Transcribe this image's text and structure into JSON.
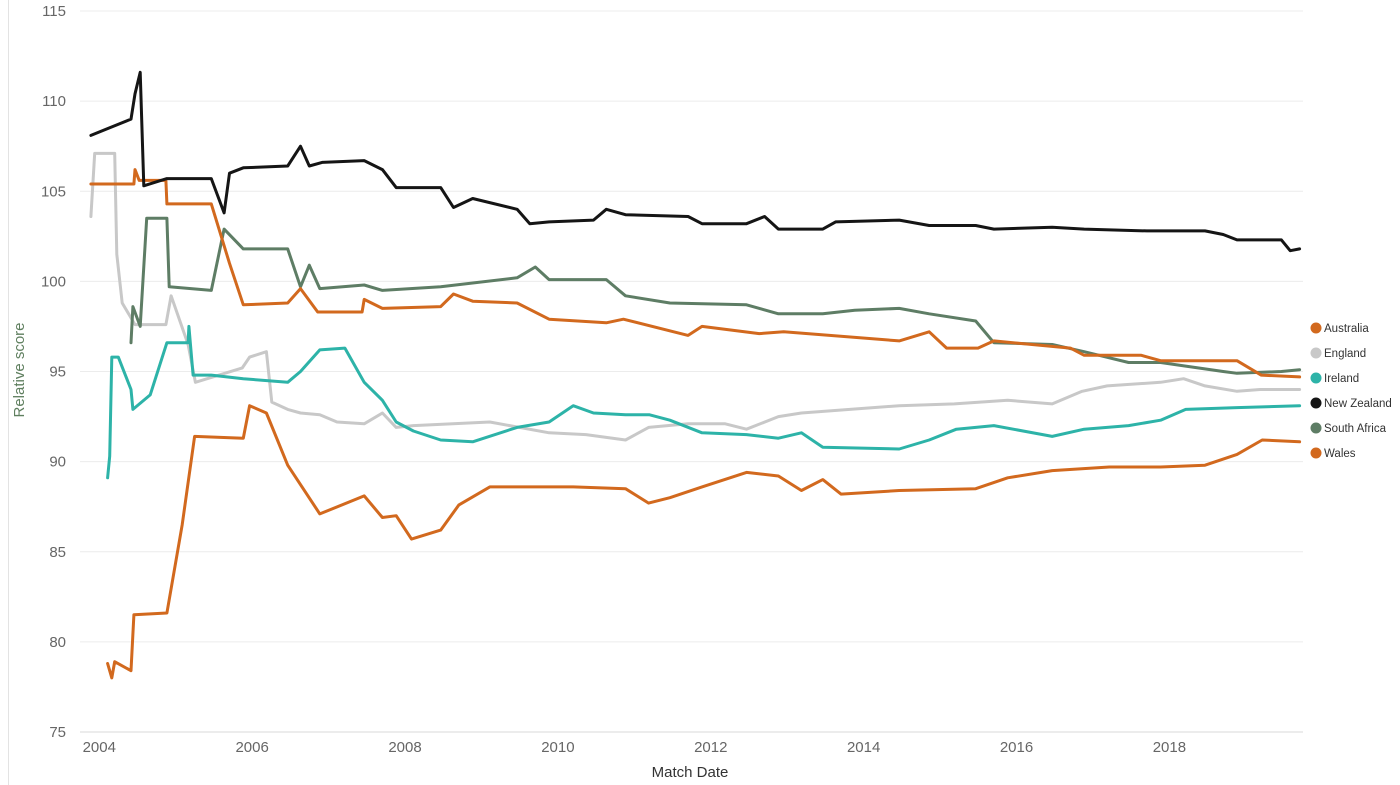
{
  "chart_data": {
    "type": "line",
    "xlabel": "Match Date",
    "ylabel": "Relative score",
    "xlim": [
      "2003-10-01",
      "2019-10-01"
    ],
    "ylim": [
      75,
      115
    ],
    "yticks": [
      75,
      80,
      85,
      90,
      95,
      100,
      105,
      110,
      115
    ],
    "xticks": [
      "2004",
      "2006",
      "2008",
      "2010",
      "2012",
      "2014",
      "2016",
      "2018"
    ],
    "grid": "horizontal",
    "legend_position": "right",
    "series": [
      {
        "name": "Australia",
        "color": "#D2691E",
        "points": [
          [
            "2003-11-22",
            105.4
          ],
          [
            "2004-06-15",
            105.4
          ],
          [
            "2004-06-20",
            106.2
          ],
          [
            "2004-07-10",
            105.6
          ],
          [
            "2004-11-15",
            105.6
          ],
          [
            "2004-11-20",
            104.3
          ],
          [
            "2005-06-20",
            104.3
          ],
          [
            "2005-09-15",
            101.0
          ],
          [
            "2005-11-20",
            98.7
          ],
          [
            "2006-06-20",
            98.8
          ],
          [
            "2006-08-20",
            99.6
          ],
          [
            "2006-11-10",
            98.3
          ],
          [
            "2007-06-10",
            98.3
          ],
          [
            "2007-06-20",
            99.0
          ],
          [
            "2007-09-15",
            98.5
          ],
          [
            "2008-06-20",
            98.6
          ],
          [
            "2008-08-20",
            99.3
          ],
          [
            "2008-11-20",
            98.9
          ],
          [
            "2009-06-20",
            98.8
          ],
          [
            "2009-11-20",
            97.9
          ],
          [
            "2010-08-20",
            97.7
          ],
          [
            "2010-11-10",
            97.9
          ],
          [
            "2011-09-15",
            97.0
          ],
          [
            "2011-11-20",
            97.5
          ],
          [
            "2012-08-20",
            97.1
          ],
          [
            "2012-12-15",
            97.2
          ],
          [
            "2014-06-20",
            96.7
          ],
          [
            "2014-11-10",
            97.2
          ],
          [
            "2015-02-01",
            96.3
          ],
          [
            "2015-07-01",
            96.3
          ],
          [
            "2015-09-15",
            96.7
          ],
          [
            "2016-09-15",
            96.3
          ],
          [
            "2016-11-20",
            95.9
          ],
          [
            "2017-08-20",
            95.9
          ],
          [
            "2017-11-20",
            95.6
          ],
          [
            "2018-11-20",
            95.6
          ],
          [
            "2019-03-15",
            94.8
          ],
          [
            "2019-09-15",
            94.7
          ]
        ]
      },
      {
        "name": "England",
        "color": "#C8C8C8",
        "points": [
          [
            "2003-11-22",
            103.6
          ],
          [
            "2003-12-10",
            107.1
          ],
          [
            "2004-03-15",
            107.1
          ],
          [
            "2004-03-25",
            101.5
          ],
          [
            "2004-04-20",
            98.8
          ],
          [
            "2004-06-20",
            97.6
          ],
          [
            "2004-11-15",
            97.6
          ],
          [
            "2004-12-10",
            99.2
          ],
          [
            "2005-03-01",
            96.5
          ],
          [
            "2005-04-05",
            94.4
          ],
          [
            "2005-11-15",
            95.2
          ],
          [
            "2005-12-20",
            95.8
          ],
          [
            "2006-03-10",
            96.1
          ],
          [
            "2006-04-05",
            93.3
          ],
          [
            "2006-06-20",
            92.9
          ],
          [
            "2006-08-20",
            92.7
          ],
          [
            "2006-11-20",
            92.6
          ],
          [
            "2007-02-10",
            92.2
          ],
          [
            "2007-06-20",
            92.1
          ],
          [
            "2007-09-15",
            92.7
          ],
          [
            "2007-11-20",
            91.9
          ],
          [
            "2008-02-10",
            92.0
          ],
          [
            "2009-02-10",
            92.2
          ],
          [
            "2009-11-20",
            91.6
          ],
          [
            "2010-05-15",
            91.5
          ],
          [
            "2010-11-20",
            91.2
          ],
          [
            "2011-03-10",
            91.9
          ],
          [
            "2011-09-15",
            92.1
          ],
          [
            "2012-03-10",
            92.1
          ],
          [
            "2012-06-20",
            91.8
          ],
          [
            "2012-11-20",
            92.5
          ],
          [
            "2013-03-10",
            92.7
          ],
          [
            "2014-06-20",
            93.1
          ],
          [
            "2015-03-10",
            93.2
          ],
          [
            "2015-11-20",
            93.4
          ],
          [
            "2016-06-20",
            93.2
          ],
          [
            "2016-11-10",
            93.9
          ],
          [
            "2017-03-10",
            94.2
          ],
          [
            "2017-11-20",
            94.4
          ],
          [
            "2018-03-10",
            94.6
          ],
          [
            "2018-06-20",
            94.2
          ],
          [
            "2018-11-20",
            93.9
          ],
          [
            "2019-03-10",
            94.0
          ],
          [
            "2019-09-15",
            94.0
          ]
        ]
      },
      {
        "name": "Ireland",
        "color": "#2DB3A8",
        "points": [
          [
            "2004-02-10",
            89.1
          ],
          [
            "2004-02-20",
            90.3
          ],
          [
            "2004-03-01",
            95.8
          ],
          [
            "2004-04-01",
            95.8
          ],
          [
            "2004-06-01",
            94.0
          ],
          [
            "2004-06-10",
            92.9
          ],
          [
            "2004-09-01",
            93.7
          ],
          [
            "2004-11-20",
            96.6
          ],
          [
            "2005-03-01",
            96.6
          ],
          [
            "2005-03-05",
            97.5
          ],
          [
            "2005-03-25",
            94.8
          ],
          [
            "2005-06-20",
            94.8
          ],
          [
            "2005-11-20",
            94.6
          ],
          [
            "2006-06-20",
            94.4
          ],
          [
            "2006-08-20",
            95.0
          ],
          [
            "2006-11-20",
            96.2
          ],
          [
            "2007-03-20",
            96.3
          ],
          [
            "2007-06-20",
            94.4
          ],
          [
            "2007-09-15",
            93.4
          ],
          [
            "2007-11-20",
            92.2
          ],
          [
            "2008-02-10",
            91.7
          ],
          [
            "2008-06-20",
            91.2
          ],
          [
            "2008-11-20",
            91.1
          ],
          [
            "2009-06-20",
            91.9
          ],
          [
            "2009-11-20",
            92.2
          ],
          [
            "2010-03-15",
            93.1
          ],
          [
            "2010-06-20",
            92.7
          ],
          [
            "2010-11-20",
            92.6
          ],
          [
            "2011-03-15",
            92.6
          ],
          [
            "2011-06-20",
            92.3
          ],
          [
            "2011-11-20",
            91.6
          ],
          [
            "2012-06-20",
            91.5
          ],
          [
            "2012-11-20",
            91.3
          ],
          [
            "2013-03-10",
            91.6
          ],
          [
            "2013-06-20",
            90.8
          ],
          [
            "2014-06-20",
            90.7
          ],
          [
            "2014-11-10",
            91.2
          ],
          [
            "2015-03-20",
            91.8
          ],
          [
            "2015-09-15",
            92.0
          ],
          [
            "2016-06-20",
            91.4
          ],
          [
            "2016-11-20",
            91.8
          ],
          [
            "2017-06-20",
            92.0
          ],
          [
            "2017-11-20",
            92.3
          ],
          [
            "2018-03-20",
            92.9
          ],
          [
            "2018-11-20",
            93.0
          ],
          [
            "2019-09-15",
            93.1
          ]
        ]
      },
      {
        "name": "New Zealand",
        "color": "#151515",
        "points": [
          [
            "2003-11-22",
            108.1
          ],
          [
            "2004-06-01",
            109.0
          ],
          [
            "2004-06-20",
            110.4
          ],
          [
            "2004-07-15",
            111.6
          ],
          [
            "2004-08-01",
            105.3
          ],
          [
            "2004-11-20",
            105.7
          ],
          [
            "2005-06-20",
            105.7
          ],
          [
            "2005-08-20",
            103.8
          ],
          [
            "2005-09-15",
            106.0
          ],
          [
            "2005-11-20",
            106.3
          ],
          [
            "2006-06-20",
            106.4
          ],
          [
            "2006-08-20",
            107.5
          ],
          [
            "2006-10-01",
            106.4
          ],
          [
            "2006-12-01",
            106.6
          ],
          [
            "2007-06-20",
            106.7
          ],
          [
            "2007-09-15",
            106.2
          ],
          [
            "2007-11-20",
            105.2
          ],
          [
            "2008-06-20",
            105.2
          ],
          [
            "2008-08-20",
            104.1
          ],
          [
            "2008-11-20",
            104.6
          ],
          [
            "2009-06-20",
            104.0
          ],
          [
            "2009-08-20",
            103.2
          ],
          [
            "2009-11-20",
            103.3
          ],
          [
            "2010-06-20",
            103.4
          ],
          [
            "2010-08-20",
            104.0
          ],
          [
            "2010-11-20",
            103.7
          ],
          [
            "2011-09-15",
            103.6
          ],
          [
            "2011-11-20",
            103.2
          ],
          [
            "2012-06-20",
            103.2
          ],
          [
            "2012-09-15",
            103.6
          ],
          [
            "2012-11-20",
            102.9
          ],
          [
            "2013-06-20",
            102.9
          ],
          [
            "2013-08-20",
            103.3
          ],
          [
            "2014-06-20",
            103.4
          ],
          [
            "2014-11-10",
            103.1
          ],
          [
            "2015-06-20",
            103.1
          ],
          [
            "2015-09-15",
            102.9
          ],
          [
            "2016-06-20",
            103.0
          ],
          [
            "2016-11-20",
            102.9
          ],
          [
            "2017-09-15",
            102.8
          ],
          [
            "2018-06-20",
            102.8
          ],
          [
            "2018-09-15",
            102.6
          ],
          [
            "2018-11-20",
            102.3
          ],
          [
            "2019-06-20",
            102.3
          ],
          [
            "2019-08-01",
            101.7
          ],
          [
            "2019-09-15",
            101.8
          ]
        ]
      },
      {
        "name": "South Africa",
        "color": "#5E7D65",
        "points": [
          [
            "2004-06-01",
            96.6
          ],
          [
            "2004-06-10",
            98.6
          ],
          [
            "2004-07-15",
            97.5
          ],
          [
            "2004-08-15",
            103.5
          ],
          [
            "2004-11-20",
            103.5
          ],
          [
            "2004-12-01",
            99.7
          ],
          [
            "2005-06-20",
            99.5
          ],
          [
            "2005-08-20",
            102.9
          ],
          [
            "2005-11-20",
            101.8
          ],
          [
            "2006-06-20",
            101.8
          ],
          [
            "2006-08-20",
            99.7
          ],
          [
            "2006-10-01",
            100.9
          ],
          [
            "2006-11-20",
            99.6
          ],
          [
            "2007-06-20",
            99.8
          ],
          [
            "2007-09-15",
            99.5
          ],
          [
            "2008-06-20",
            99.7
          ],
          [
            "2009-06-20",
            100.2
          ],
          [
            "2009-09-15",
            100.8
          ],
          [
            "2009-11-20",
            100.1
          ],
          [
            "2010-08-20",
            100.1
          ],
          [
            "2010-11-20",
            99.2
          ],
          [
            "2011-06-20",
            98.8
          ],
          [
            "2012-06-20",
            98.7
          ],
          [
            "2012-11-20",
            98.2
          ],
          [
            "2013-06-20",
            98.2
          ],
          [
            "2013-11-20",
            98.4
          ],
          [
            "2014-06-20",
            98.5
          ],
          [
            "2014-11-10",
            98.2
          ],
          [
            "2015-06-20",
            97.8
          ],
          [
            "2015-09-15",
            96.6
          ],
          [
            "2016-06-20",
            96.5
          ],
          [
            "2016-11-20",
            96.1
          ],
          [
            "2017-06-20",
            95.5
          ],
          [
            "2017-11-20",
            95.5
          ],
          [
            "2018-03-20",
            95.3
          ],
          [
            "2018-09-15",
            95.0
          ],
          [
            "2018-11-20",
            94.9
          ],
          [
            "2019-06-20",
            95.0
          ],
          [
            "2019-09-15",
            95.1
          ]
        ]
      },
      {
        "name": "Wales",
        "color": "#D2691E",
        "points": [
          [
            "2004-02-10",
            78.8
          ],
          [
            "2004-03-01",
            78.0
          ],
          [
            "2004-03-15",
            78.9
          ],
          [
            "2004-06-01",
            78.4
          ],
          [
            "2004-06-15",
            81.5
          ],
          [
            "2004-11-20",
            81.6
          ],
          [
            "2005-02-01",
            86.5
          ],
          [
            "2005-04-01",
            91.4
          ],
          [
            "2005-11-20",
            91.3
          ],
          [
            "2005-12-20",
            93.1
          ],
          [
            "2006-03-10",
            92.7
          ],
          [
            "2006-06-20",
            89.8
          ],
          [
            "2006-11-20",
            87.1
          ],
          [
            "2007-06-20",
            88.1
          ],
          [
            "2007-09-15",
            86.9
          ],
          [
            "2007-11-20",
            87.0
          ],
          [
            "2008-02-01",
            85.7
          ],
          [
            "2008-06-20",
            86.2
          ],
          [
            "2008-09-15",
            87.6
          ],
          [
            "2009-02-10",
            88.6
          ],
          [
            "2010-03-15",
            88.6
          ],
          [
            "2010-11-20",
            88.5
          ],
          [
            "2011-03-10",
            87.7
          ],
          [
            "2011-06-20",
            88.0
          ],
          [
            "2011-11-20",
            88.6
          ],
          [
            "2012-06-20",
            89.4
          ],
          [
            "2012-11-20",
            89.2
          ],
          [
            "2013-03-10",
            88.4
          ],
          [
            "2013-06-20",
            89.0
          ],
          [
            "2013-09-15",
            88.2
          ],
          [
            "2014-06-20",
            88.4
          ],
          [
            "2015-06-20",
            88.5
          ],
          [
            "2015-11-20",
            89.1
          ],
          [
            "2016-06-20",
            89.5
          ],
          [
            "2017-03-20",
            89.7
          ],
          [
            "2017-11-20",
            89.7
          ],
          [
            "2018-06-20",
            89.8
          ],
          [
            "2018-11-20",
            90.4
          ],
          [
            "2019-03-20",
            91.2
          ],
          [
            "2019-09-15",
            91.1
          ]
        ]
      }
    ]
  }
}
